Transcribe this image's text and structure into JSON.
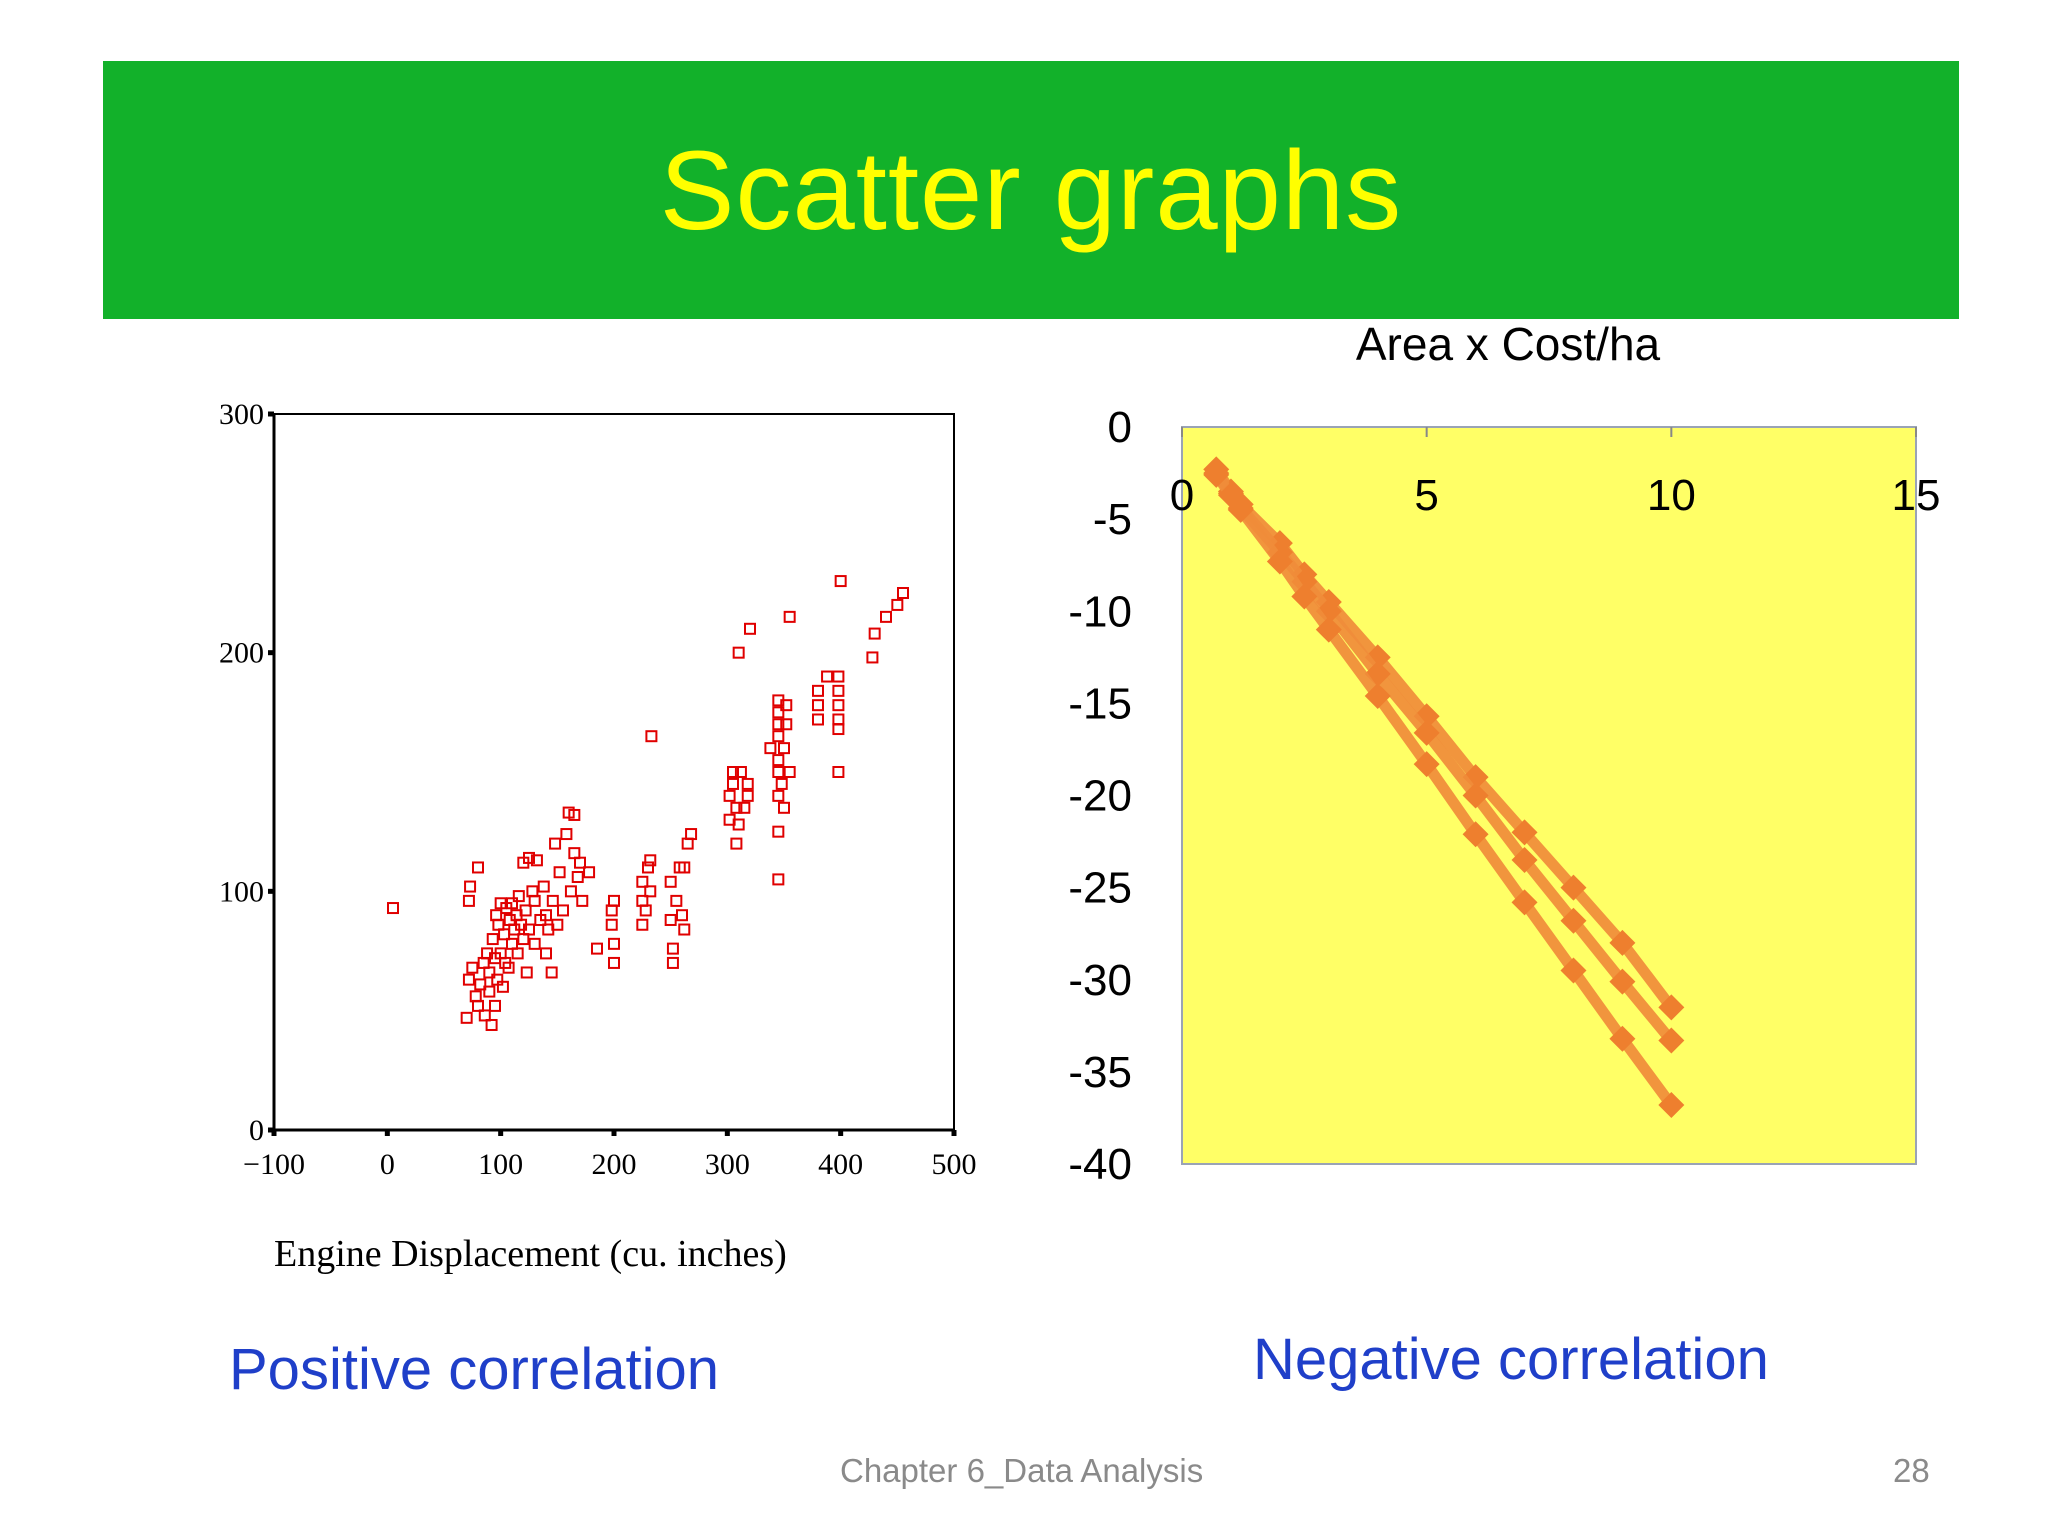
{
  "slide": {
    "title": "Scatter graphs",
    "left_caption": "Positive correlation",
    "right_caption": "Negative correlation",
    "footer_text": "Chapter 6_Data Analysis",
    "page_number": "28",
    "banner_color": "#12b12a",
    "title_color": "#ffff00",
    "caption_color": "#1f3fc9"
  },
  "chart_data": [
    {
      "type": "scatter",
      "title": "",
      "xlabel": "Engine Displacement (cu. inches)",
      "ylabel": "",
      "xlim": [
        -100,
        500
      ],
      "ylim": [
        0,
        300
      ],
      "xticks": [
        "-100",
        "0",
        "100",
        "200",
        "300",
        "400",
        "500"
      ],
      "yticks": [
        "0",
        "100",
        "200",
        "300"
      ],
      "grid": false,
      "marker": "hollow-square",
      "color": "#e00000",
      "points": [
        [
          5,
          93
        ],
        [
          70,
          47
        ],
        [
          72,
          63
        ],
        [
          72,
          96
        ],
        [
          73,
          102
        ],
        [
          75,
          68
        ],
        [
          78,
          56
        ],
        [
          80,
          52
        ],
        [
          80,
          110
        ],
        [
          82,
          61
        ],
        [
          85,
          70
        ],
        [
          86,
          48
        ],
        [
          88,
          74
        ],
        [
          90,
          58
        ],
        [
          90,
          66
        ],
        [
          92,
          44
        ],
        [
          93,
          80
        ],
        [
          95,
          52
        ],
        [
          95,
          72
        ],
        [
          96,
          90
        ],
        [
          97,
          63
        ],
        [
          98,
          86
        ],
        [
          100,
          74
        ],
        [
          100,
          95
        ],
        [
          102,
          60
        ],
        [
          103,
          82
        ],
        [
          104,
          70
        ],
        [
          105,
          93
        ],
        [
          107,
          68
        ],
        [
          108,
          88
        ],
        [
          110,
          78
        ],
        [
          110,
          95
        ],
        [
          112,
          84
        ],
        [
          114,
          90
        ],
        [
          115,
          74
        ],
        [
          116,
          98
        ],
        [
          118,
          86
        ],
        [
          120,
          80
        ],
        [
          120,
          112
        ],
        [
          122,
          92
        ],
        [
          123,
          66
        ],
        [
          125,
          114
        ],
        [
          125,
          84
        ],
        [
          128,
          100
        ],
        [
          130,
          96
        ],
        [
          130,
          78
        ],
        [
          132,
          113
        ],
        [
          135,
          88
        ],
        [
          138,
          102
        ],
        [
          140,
          74
        ],
        [
          140,
          90
        ],
        [
          142,
          84
        ],
        [
          145,
          66
        ],
        [
          146,
          96
        ],
        [
          148,
          120
        ],
        [
          150,
          86
        ],
        [
          152,
          108
        ],
        [
          155,
          92
        ],
        [
          158,
          124
        ],
        [
          160,
          133
        ],
        [
          162,
          100
        ],
        [
          165,
          116
        ],
        [
          165,
          132
        ],
        [
          168,
          106
        ],
        [
          170,
          112
        ],
        [
          172,
          96
        ],
        [
          178,
          108
        ],
        [
          185,
          76
        ],
        [
          198,
          86
        ],
        [
          198,
          92
        ],
        [
          200,
          78
        ],
        [
          200,
          96
        ],
        [
          200,
          70
        ],
        [
          225,
          86
        ],
        [
          225,
          96
        ],
        [
          225,
          104
        ],
        [
          228,
          92
        ],
        [
          230,
          110
        ],
        [
          232,
          100
        ],
        [
          232,
          113
        ],
        [
          233,
          165
        ],
        [
          250,
          104
        ],
        [
          250,
          88
        ],
        [
          252,
          76
        ],
        [
          252,
          70
        ],
        [
          255,
          96
        ],
        [
          258,
          110
        ],
        [
          260,
          90
        ],
        [
          262,
          84
        ],
        [
          262,
          110
        ],
        [
          265,
          120
        ],
        [
          268,
          124
        ],
        [
          302,
          130
        ],
        [
          302,
          140
        ],
        [
          305,
          145
        ],
        [
          305,
          150
        ],
        [
          308,
          120
        ],
        [
          308,
          135
        ],
        [
          310,
          128
        ],
        [
          310,
          200
        ],
        [
          312,
          150
        ],
        [
          315,
          135
        ],
        [
          318,
          140
        ],
        [
          318,
          145
        ],
        [
          320,
          210
        ],
        [
          338,
          160
        ],
        [
          345,
          105
        ],
        [
          345,
          125
        ],
        [
          345,
          140
        ],
        [
          345,
          150
        ],
        [
          345,
          155
        ],
        [
          345,
          165
        ],
        [
          345,
          170
        ],
        [
          345,
          175
        ],
        [
          345,
          180
        ],
        [
          348,
          145
        ],
        [
          350,
          135
        ],
        [
          350,
          160
        ],
        [
          352,
          170
        ],
        [
          352,
          178
        ],
        [
          355,
          150
        ],
        [
          355,
          215
        ],
        [
          380,
          172
        ],
        [
          380,
          178
        ],
        [
          380,
          184
        ],
        [
          388,
          190
        ],
        [
          398,
          150
        ],
        [
          398,
          168
        ],
        [
          398,
          172
        ],
        [
          398,
          178
        ],
        [
          398,
          184
        ],
        [
          398,
          190
        ],
        [
          400,
          230
        ],
        [
          428,
          198
        ],
        [
          430,
          208
        ],
        [
          440,
          215
        ],
        [
          450,
          220
        ],
        [
          455,
          225
        ]
      ]
    },
    {
      "type": "line",
      "title": "Area x Cost/ha",
      "xlabel": "",
      "ylabel": "",
      "xlim": [
        0,
        15
      ],
      "ylim": [
        -40,
        0
      ],
      "xticks": [
        "0",
        "5",
        "10",
        "15"
      ],
      "yticks": [
        "0",
        "-5",
        "-10",
        "-15",
        "-20",
        "-25",
        "-30",
        "-35",
        "-40"
      ],
      "grid": false,
      "background": "#ffff66",
      "color": "#f08c3a",
      "marker": "diamond",
      "series": [
        {
          "x": [
            0.7,
            1,
            1.2,
            2,
            2.5,
            3,
            4,
            5,
            6,
            7,
            8,
            9,
            10
          ],
          "y": [
            -2.3,
            -3.5,
            -4.2,
            -6.3,
            -8,
            -9.5,
            -12.5,
            -15.7,
            -19,
            -22,
            -25,
            -28,
            -31.5
          ]
        },
        {
          "x": [
            0.7,
            1,
            1.2,
            2,
            2.5,
            3,
            4,
            5,
            6,
            7,
            8,
            9,
            10
          ],
          "y": [
            -2.5,
            -3.6,
            -4.4,
            -6.8,
            -8.4,
            -10,
            -13.4,
            -16.6,
            -20,
            -23.5,
            -26.8,
            -30.1,
            -33.3
          ]
        },
        {
          "x": [
            0.7,
            1,
            1.2,
            2,
            2.5,
            3,
            4,
            5,
            6,
            7,
            8,
            9,
            10
          ],
          "y": [
            -2.6,
            -3.7,
            -4.5,
            -7.3,
            -9.2,
            -11,
            -14.6,
            -18.3,
            -22.1,
            -25.8,
            -29.5,
            -33.2,
            -36.8
          ]
        }
      ]
    }
  ]
}
